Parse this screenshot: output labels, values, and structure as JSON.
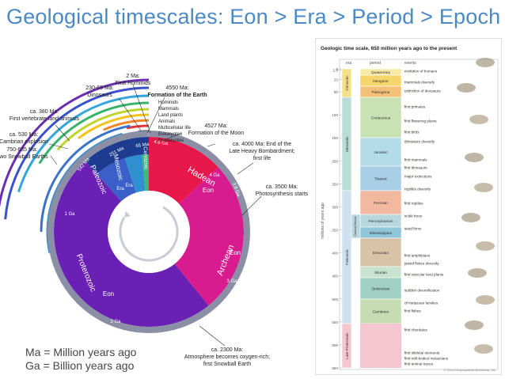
{
  "title": "Geological timescales: Eon > Era > Period > Epoch",
  "legend": {
    "ma": "Ma = Million years ago",
    "ga": "Ga = Billion years ago"
  },
  "wheel": {
    "eons": [
      "Hadean",
      "Archean",
      "Proterozoic"
    ],
    "eon_word": "Eon",
    "eras": [
      "Cenozoic",
      "Mesozoic",
      "Paleozoic"
    ],
    "era_word": "Era",
    "ring_ticks": [
      "4.6 Ga",
      "4 Ga",
      "3.8 Ga",
      "3 Ga",
      "2.5 Ga",
      "2 Ga",
      "1 Ga",
      "542 Ma",
      "251 Ma",
      "65 Ma"
    ],
    "inner_ticks": [
      "4 Ga",
      "3 Ga",
      "2 Ga",
      "1 Ga"
    ]
  },
  "annotations": {
    "two_ma": [
      "2 Ma:",
      "First Hominids"
    ],
    "dinosaurs": [
      "230-65 Ma:",
      "Dinosaurs"
    ],
    "formation": [
      "4550 Ma:",
      "Formation of the Earth"
    ],
    "life_list": [
      "Hominids",
      "Mammals",
      "Land plants",
      "Animals",
      "Multicellular life",
      "Eukaryotes",
      "Prokaryotes"
    ],
    "moon": [
      "4527 Ma:",
      "Formation of the Moon"
    ],
    "vertebrate": [
      "ca. 380 Ma:",
      "First vertebrate land animals"
    ],
    "cambrian": [
      "ca. 530 Ma:",
      "Cambrian explosion"
    ],
    "snowball": [
      "750-635 Ma:",
      "Two Snowball Earths"
    ],
    "bombardment": [
      "ca. 4000 Ma: End of the",
      "Late Heavy Bombardment;",
      "first life"
    ],
    "photosynthesis": [
      "ca. 3500 Ma:",
      "Photosynthesis starts"
    ],
    "oxygen": [
      "ca. 2300 Ma:",
      "Atmosphere becomes oxygen-rich;",
      "first Snowball Earth"
    ]
  },
  "panel": {
    "title": "Geologic time scale, 650 million years ago to the present",
    "headers": [
      "era",
      "period",
      "events"
    ],
    "yaxis_label": "millions of years ago",
    "yticks": [
      "0",
      "2.6",
      "23",
      "50",
      "100",
      "150",
      "200",
      "250",
      "300",
      "350",
      "400",
      "450",
      "500",
      "550",
      "600",
      "650"
    ],
    "eras": [
      "Cenozoic",
      "Mesozoic",
      "Paleozoic",
      "Late Proterozoic"
    ],
    "carboniferous": "Carbon-iferous",
    "periods": [
      "Quaternary",
      "Neogene",
      "Paleogene",
      "Cretaceous",
      "Jurassic",
      "Triassic",
      "Permian",
      "Pennsylvanian",
      "Mississippian",
      "Devonian",
      "Silurian",
      "Ordovician",
      "Cambrian"
    ],
    "events": [
      [
        "evolution of humans"
      ],
      [
        "mammals diversify"
      ],
      [
        "extinction of dinosaurs"
      ],
      [
        "first primates"
      ],
      [
        "first flowering plants"
      ],
      [
        "first birds"
      ],
      [
        "dinosaurs diversify"
      ],
      [
        "first mammals"
      ],
      [
        "first dinosaurs"
      ],
      [
        "major extinctions"
      ],
      [
        "reptiles diversify"
      ],
      [
        "first reptiles",
        "scale trees",
        "seed ferns"
      ],
      [
        "first amphibians"
      ],
      [
        "jawed fishes diversify"
      ],
      [
        "first vascular land plants"
      ],
      [
        "sudden diversification",
        "of metazoan families"
      ],
      [
        "first fishes"
      ],
      [
        "first chordates"
      ],
      [
        "first skeletal elements",
        "first soft-bodied metazoans",
        "first animal traces"
      ]
    ],
    "copyright": "© 2010 Encyclopædia Britannica, Inc."
  },
  "colors": {
    "title": "#4a89c4",
    "hadean": "#e8194a",
    "archean": "#d81b8e",
    "proterozoic": "#6a1fb5",
    "paleozoic": "#3a5fc8",
    "mesozoic": "#2f8fcf",
    "cenozoic": "#3fb67a",
    "quaternary": "#f9e9a6",
    "neogene": "#f6d56a",
    "paleogene": "#f3c077",
    "cretaceous": "#c9e2b3",
    "jurassic": "#b3dbe8",
    "triassic": "#a8cfe6",
    "permian": "#f2b9a0",
    "pennsylvanian": "#b9d7de",
    "mississippian": "#8fc6d9",
    "devonian": "#d9c3a8",
    "silurian": "#c7e3d0",
    "ordovician": "#9fd0c1",
    "cambrian": "#c6dcb2",
    "late_proterozoic": "#f3c6d0"
  }
}
